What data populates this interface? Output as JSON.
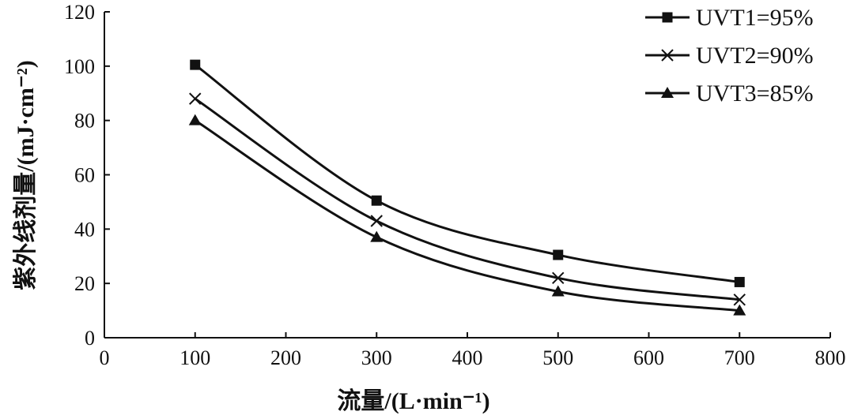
{
  "chart_data": {
    "type": "line",
    "xlabel": "流量/(L·min⁻¹)",
    "ylabel": "紫外线剂量/(mJ·cm⁻²)",
    "xlim": [
      0,
      800
    ],
    "ylim": [
      0,
      120
    ],
    "x_ticks": [
      "0",
      "100",
      "200",
      "300",
      "400",
      "500",
      "600",
      "700",
      "800"
    ],
    "y_ticks": [
      "0",
      "20",
      "40",
      "60",
      "80",
      "100",
      "120"
    ],
    "x": [
      100,
      300,
      500,
      700
    ],
    "series": [
      {
        "name": "UVT1=95%",
        "marker": "square",
        "values": [
          100.5,
          50.5,
          30.5,
          20.5
        ]
      },
      {
        "name": "UVT2=90%",
        "marker": "x",
        "values": [
          88,
          43,
          22,
          14
        ]
      },
      {
        "name": "UVT3=85%",
        "marker": "triangle",
        "values": [
          80,
          37,
          17,
          10
        ]
      }
    ],
    "legend_position": "top-right",
    "grid": false,
    "line_color": "#111111"
  }
}
